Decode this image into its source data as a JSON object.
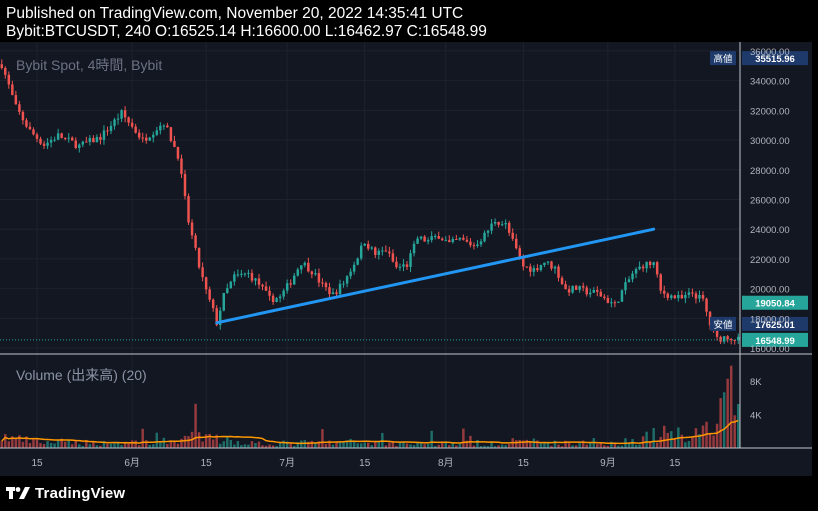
{
  "header": {
    "published_line": "Published on TradingView.com, November 20, 2022 14:35:41 UTC",
    "ohlc_line": "Bybit:BTCUSDT, 240 O:16525.14 H:16600.00 L:16462.97 C:16548.99"
  },
  "footer": {
    "brand": "TradingView"
  },
  "colors": {
    "background": "#131722",
    "up": "#26a69a",
    "down": "#ef5350",
    "trendline": "#2196f3",
    "volume_ma": "#ff9800",
    "label_blue": "#1e3a6b",
    "label_green": "#26a69a"
  },
  "chart_data": {
    "type": "candlestick",
    "legend": "Bybit Spot, 4時間, Bybit",
    "price_axis": {
      "ticks": [
        "36000.00",
        "34000.00",
        "32000.00",
        "30000.00",
        "28000.00",
        "26000.00",
        "24000.00",
        "22000.00",
        "20000.00",
        "18000.00",
        "16000.00"
      ],
      "ylim": [
        15600,
        36600
      ]
    },
    "time_axis": {
      "ticks": [
        "15",
        "6月",
        "15",
        "7月",
        "15",
        "8月",
        "15",
        "9月",
        "15"
      ]
    },
    "price_path": [
      [
        0,
        35100
      ],
      [
        4,
        32200
      ],
      [
        8,
        30600
      ],
      [
        12,
        29700
      ],
      [
        16,
        30300
      ],
      [
        22,
        29600
      ],
      [
        28,
        30200
      ],
      [
        34,
        31800
      ],
      [
        40,
        30000
      ],
      [
        46,
        31200
      ],
      [
        50,
        29000
      ],
      [
        53,
        24500
      ],
      [
        56,
        21500
      ],
      [
        58,
        19800
      ],
      [
        60,
        18500
      ],
      [
        61,
        17700
      ],
      [
        63,
        19500
      ],
      [
        66,
        20800
      ],
      [
        70,
        21000
      ],
      [
        73,
        20300
      ],
      [
        76,
        19300
      ],
      [
        79,
        19400
      ],
      [
        82,
        20500
      ],
      [
        85,
        21800
      ],
      [
        88,
        21200
      ],
      [
        91,
        20200
      ],
      [
        94,
        19600
      ],
      [
        97,
        20400
      ],
      [
        100,
        21700
      ],
      [
        103,
        23200
      ],
      [
        106,
        22300
      ],
      [
        109,
        22600
      ],
      [
        112,
        21400
      ],
      [
        115,
        21600
      ],
      [
        118,
        23400
      ],
      [
        121,
        23200
      ],
      [
        124,
        23600
      ],
      [
        127,
        23000
      ],
      [
        130,
        23300
      ],
      [
        134,
        22900
      ],
      [
        137,
        23600
      ],
      [
        140,
        24600
      ],
      [
        143,
        24300
      ],
      [
        146,
        22600
      ],
      [
        148,
        21500
      ],
      [
        151,
        21300
      ],
      [
        154,
        21800
      ],
      [
        157,
        21400
      ],
      [
        160,
        19900
      ],
      [
        163,
        20000
      ],
      [
        166,
        19800
      ],
      [
        169,
        19700
      ],
      [
        172,
        19200
      ],
      [
        174,
        18900
      ],
      [
        176,
        19800
      ],
      [
        179,
        21000
      ],
      [
        182,
        21600
      ],
      [
        185,
        21700
      ],
      [
        187,
        19800
      ],
      [
        190,
        19500
      ],
      [
        193,
        19300
      ],
      [
        196,
        19700
      ],
      [
        199,
        19200
      ],
      [
        201,
        17600
      ],
      [
        203,
        16600
      ],
      [
        206,
        16800
      ],
      [
        209,
        16550
      ]
    ],
    "volume_path": [
      [
        0,
        1200
      ],
      [
        5,
        900
      ],
      [
        10,
        650
      ],
      [
        20,
        600
      ],
      [
        30,
        550
      ],
      [
        40,
        650
      ],
      [
        48,
        700
      ],
      [
        52,
        1200
      ],
      [
        56,
        1150
      ],
      [
        60,
        1000
      ],
      [
        65,
        750
      ],
      [
        70,
        550
      ],
      [
        80,
        500
      ],
      [
        90,
        600
      ],
      [
        95,
        550
      ],
      [
        100,
        650
      ],
      [
        110,
        550
      ],
      [
        120,
        500
      ],
      [
        130,
        520
      ],
      [
        140,
        550
      ],
      [
        145,
        500
      ],
      [
        150,
        700
      ],
      [
        155,
        550
      ],
      [
        160,
        500
      ],
      [
        170,
        520
      ],
      [
        176,
        600
      ],
      [
        180,
        900
      ],
      [
        185,
        1400
      ],
      [
        190,
        1600
      ],
      [
        195,
        1500
      ],
      [
        200,
        2200
      ],
      [
        203,
        3000
      ],
      [
        206,
        4000
      ],
      [
        209,
        3900
      ]
    ],
    "volume_axis": {
      "ticks": [
        "8K",
        "4K"
      ],
      "ylim": [
        0,
        10000
      ]
    },
    "volume_legend": "Volume (出来高) (20)",
    "trendline": [
      [
        61,
        17700
      ],
      [
        185,
        24000
      ]
    ],
    "price_labels": [
      {
        "tag": "高値",
        "value": "35515.96",
        "price": 35515.96,
        "style": "blue"
      },
      {
        "tag": "",
        "value": "19050.84",
        "price": 19050.84,
        "style": "green"
      },
      {
        "tag": "安値",
        "value": "17625.01",
        "price": 17625.01,
        "style": "blue"
      },
      {
        "tag": "",
        "value": "16548.99",
        "price": 16548.99,
        "style": "green"
      }
    ]
  }
}
